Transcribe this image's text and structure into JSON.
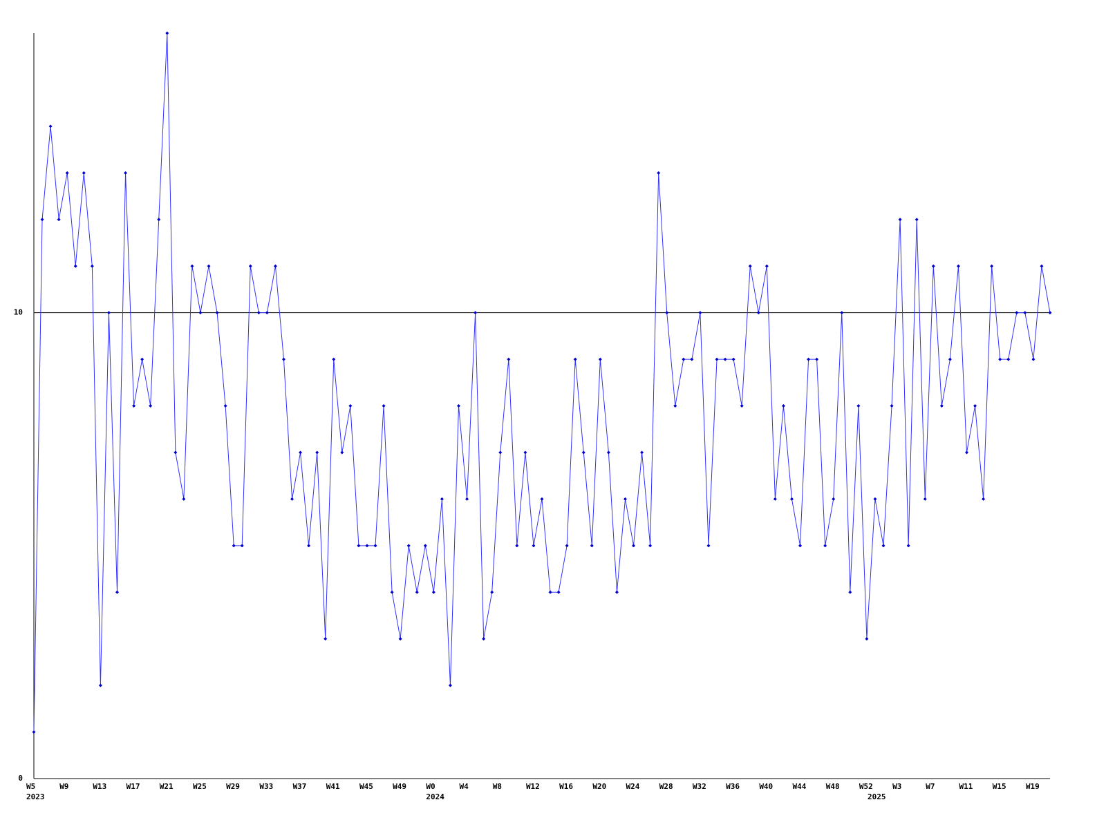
{
  "chart_data": {
    "type": "line",
    "categories": [
      "W5",
      null,
      null,
      null,
      "W9",
      null,
      null,
      null,
      "W13",
      null,
      null,
      null,
      "W17",
      null,
      null,
      null,
      "W21",
      null,
      null,
      null,
      "W25",
      null,
      null,
      null,
      "W29",
      null,
      null,
      null,
      "W33",
      null,
      null,
      null,
      "W37",
      null,
      null,
      null,
      "W41",
      null,
      null,
      null,
      "W45",
      null,
      null,
      null,
      "W49",
      null,
      null,
      null,
      "W0",
      null,
      null,
      null,
      "W4",
      null,
      null,
      null,
      "W8",
      null,
      null,
      null,
      "W12",
      null,
      null,
      null,
      "W16",
      null,
      null,
      null,
      "W20",
      null,
      null,
      null,
      "W24",
      null,
      null,
      null,
      "W28",
      null,
      null,
      null,
      "W32",
      null,
      null,
      null,
      "W36",
      null,
      null,
      null,
      "W40",
      null,
      null,
      null,
      "W44",
      null,
      null,
      null,
      "W48",
      null,
      null,
      null,
      "W52",
      null,
      null,
      null,
      "W3",
      null,
      null,
      null,
      "W7",
      null,
      null,
      null,
      "W11",
      null,
      null,
      null,
      "W15",
      null,
      null,
      null,
      "W19",
      null,
      null
    ],
    "years": [
      "2023",
      null,
      null,
      null,
      null,
      null,
      null,
      null,
      null,
      null,
      null,
      null,
      null,
      null,
      null,
      null,
      null,
      null,
      null,
      null,
      null,
      null,
      null,
      null,
      null,
      null,
      null,
      null,
      null,
      null,
      null,
      null,
      null,
      null,
      null,
      null,
      null,
      null,
      null,
      null,
      null,
      null,
      null,
      null,
      null,
      null,
      null,
      null,
      "2024",
      null,
      null,
      null,
      null,
      null,
      null,
      null,
      null,
      null,
      null,
      null,
      null,
      null,
      null,
      null,
      null,
      null,
      null,
      null,
      null,
      null,
      null,
      null,
      null,
      null,
      null,
      null,
      null,
      null,
      null,
      null,
      null,
      null,
      null,
      null,
      null,
      null,
      null,
      null,
      null,
      null,
      null,
      null,
      null,
      null,
      null,
      null,
      null,
      null,
      null,
      null,
      null,
      "2025",
      null,
      null,
      null,
      null,
      null,
      null,
      null,
      null,
      null,
      null,
      null,
      null,
      null,
      null,
      null,
      null,
      null,
      null,
      null,
      null,
      null
    ],
    "series": [
      {
        "color": "#3030ff",
        "marker_color": "#0000cc",
        "values": [
          1,
          12,
          14,
          12,
          13,
          11,
          13,
          11,
          2,
          10,
          4,
          13,
          8,
          9,
          8,
          12,
          16,
          7,
          6,
          11,
          10,
          11,
          10,
          8,
          5,
          5,
          11,
          10,
          10,
          11,
          9,
          6,
          7,
          5,
          7,
          3,
          9,
          7,
          8,
          5,
          5,
          5,
          8,
          4,
          3,
          5,
          4,
          5,
          4,
          6,
          2,
          8,
          6,
          10,
          3,
          4,
          7,
          9,
          5,
          7,
          5,
          6,
          4,
          4,
          5,
          9,
          7,
          5,
          9,
          7,
          4,
          6,
          5,
          7,
          5,
          13,
          10,
          8,
          9,
          9,
          10,
          5,
          9,
          9,
          9,
          8,
          11,
          10,
          11,
          6,
          8,
          6,
          5,
          9,
          9,
          5,
          6,
          10,
          4,
          8,
          3,
          6,
          5,
          8,
          12,
          5,
          12,
          6,
          11,
          8,
          9,
          11,
          7,
          8,
          6,
          11,
          9,
          9,
          10,
          10,
          9,
          11,
          10
        ]
      }
    ],
    "ylim": [
      0,
      16
    ],
    "yticks": [
      0,
      10
    ],
    "grid": true
  }
}
